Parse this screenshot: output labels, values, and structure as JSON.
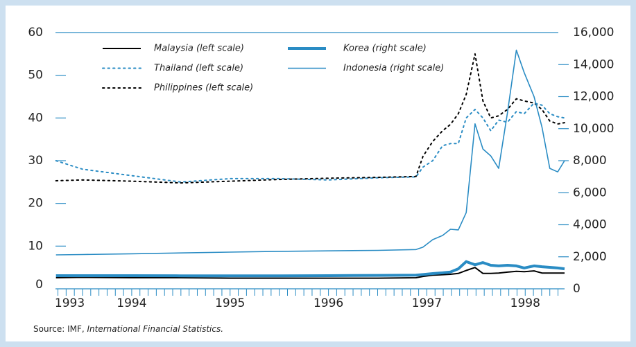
{
  "chart_data": {
    "type": "line",
    "source": "Source:  IMF,",
    "source_publication": "International Financial Statistics.",
    "x": [
      1993.73,
      1994.0,
      1994.5,
      1995.0,
      1995.5,
      1996.0,
      1996.5,
      1997.0,
      1997.39,
      1997.46,
      1997.56,
      1997.66,
      1997.74,
      1997.82,
      1997.9,
      1997.99,
      1998.07,
      1998.15,
      1998.23,
      1998.32,
      1998.41,
      1998.49,
      1998.59,
      1998.67,
      1998.75,
      1998.83,
      1998.9
    ],
    "xlim": [
      1993.73,
      1998.9
    ],
    "xticks": [
      {
        "value": 1993.87,
        "label": "1993"
      },
      {
        "value": 1994.5,
        "label": "1994"
      },
      {
        "value": 1995.5,
        "label": "1995"
      },
      {
        "value": 1996.5,
        "label": "1996"
      },
      {
        "value": 1997.5,
        "label": "1997"
      },
      {
        "value": 1998.5,
        "label": "1998"
      }
    ],
    "ylim": [
      0,
      60
    ],
    "yticks": [
      0,
      10,
      20,
      30,
      40,
      50,
      60
    ],
    "y2lim": [
      0,
      16000
    ],
    "y2ticks": [
      0,
      {
        "value": 2000,
        "label": "2,000"
      },
      {
        "value": 4000,
        "label": "4,000"
      },
      {
        "value": 6000,
        "label": "6,000"
      },
      {
        "value": 8000,
        "label": "8,000"
      },
      {
        "value": 10000,
        "label": "10,000"
      },
      {
        "value": 12000,
        "label": "12,000"
      },
      {
        "value": 14000,
        "label": "14,000"
      },
      {
        "value": 16000,
        "label": "16,000"
      }
    ],
    "series": [
      {
        "name": "Malaysia (left scale)",
        "color": "#000000",
        "dash": "solid",
        "width": 2,
        "axis": "y",
        "values": [
          2.6,
          2.7,
          2.6,
          2.6,
          2.5,
          2.5,
          2.5,
          2.5,
          2.6,
          2.9,
          3.2,
          3.3,
          3.4,
          3.6,
          4.3,
          5.0,
          3.6,
          3.6,
          3.7,
          3.9,
          4.1,
          4.0,
          4.2,
          3.7,
          3.7,
          3.7,
          3.7
        ]
      },
      {
        "name": "Thailand (left scale)",
        "color": "#2a8cc4",
        "dash": "dotted",
        "width": 2,
        "axis": "y",
        "values": [
          30,
          28,
          26.5,
          25,
          25.8,
          25.8,
          25.5,
          26,
          26.2,
          28.5,
          30,
          33.5,
          34,
          34,
          40,
          42,
          40,
          37,
          39.5,
          39,
          41.5,
          41,
          43.5,
          43,
          41,
          40.3,
          40
        ]
      },
      {
        "name": "Philippines (left scale)",
        "color": "#000000",
        "dash": "dotted",
        "width": 2,
        "axis": "y",
        "values": [
          25.3,
          25.5,
          25.2,
          24.8,
          25.2,
          25.6,
          25.9,
          26.1,
          26.3,
          31,
          34.5,
          37,
          38.5,
          41,
          45.5,
          55,
          44,
          40,
          40.5,
          42,
          44.5,
          44,
          43.5,
          42,
          39.3,
          38.6,
          38.9
        ]
      },
      {
        "name": "Korea (right scale)",
        "color": "#2a8cc4",
        "dash": "solid",
        "width": 4,
        "axis": "y2",
        "values": [
          820,
          820,
          820,
          815,
          810,
          810,
          820,
          840,
          850,
          890,
          950,
          1000,
          1050,
          1250,
          1700,
          1500,
          1640,
          1470,
          1430,
          1470,
          1430,
          1300,
          1430,
          1380,
          1340,
          1300,
          1250
        ]
      },
      {
        "name": "Indonesia (right scale)",
        "color": "#2a8cc4",
        "dash": "solid",
        "width": 1.6,
        "axis": "y2",
        "values": [
          2120,
          2140,
          2190,
          2240,
          2290,
          2340,
          2370,
          2400,
          2450,
          2600,
          3070,
          3330,
          3720,
          3680,
          4760,
          10300,
          8730,
          8300,
          7520,
          11000,
          14900,
          13500,
          12000,
          10100,
          7520,
          7300,
          8000
        ]
      }
    ]
  }
}
